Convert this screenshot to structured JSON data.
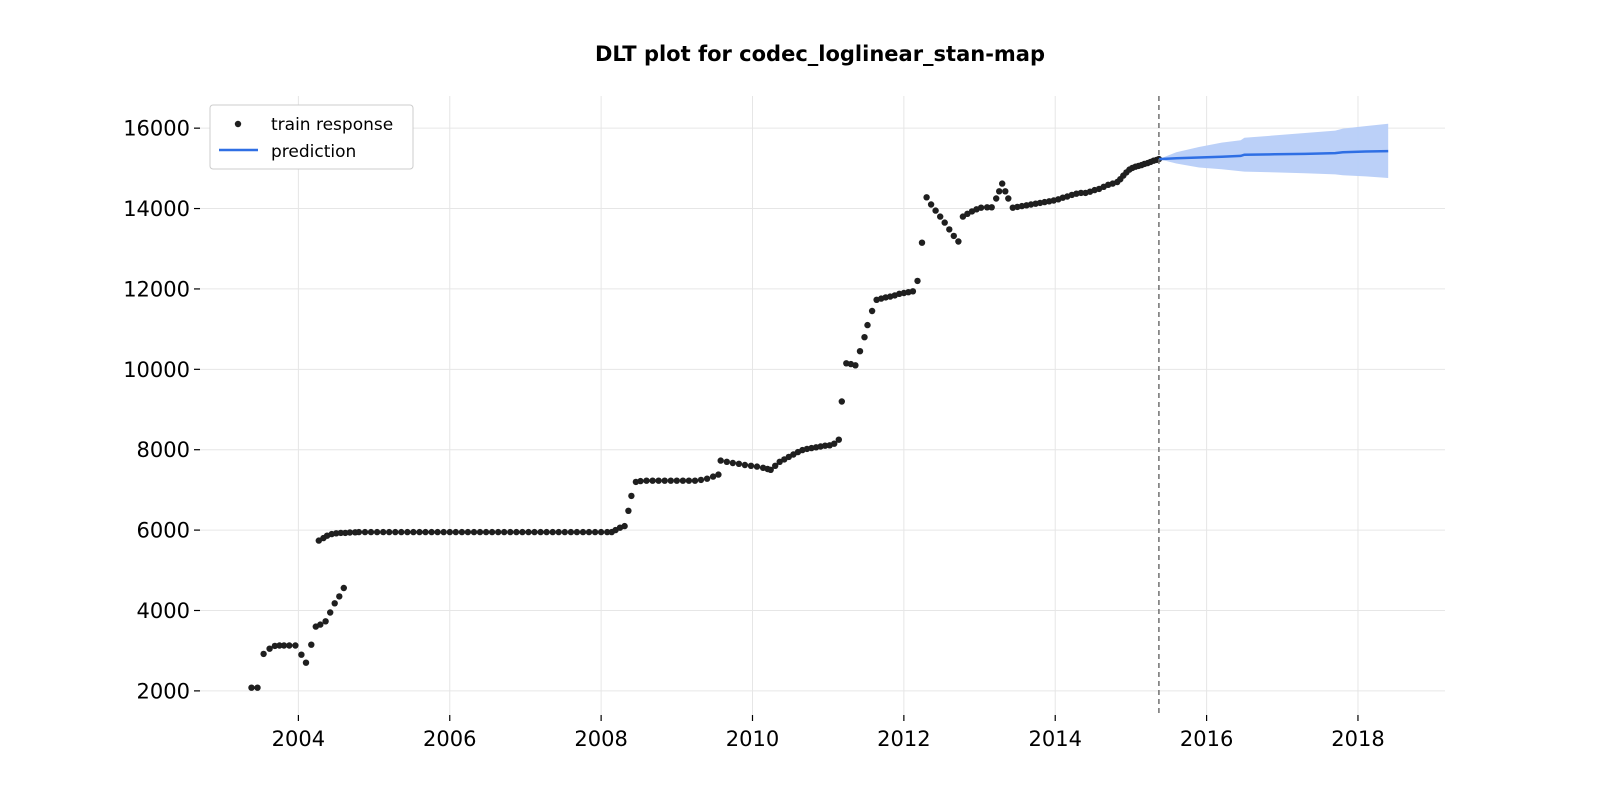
{
  "chart_data": {
    "type": "scatter",
    "title": "DLT plot for codec_loglinear_stan-map",
    "xlabel": "",
    "ylabel": "",
    "xlim": [
      2002.7,
      2019.15
    ],
    "ylim": [
      1400,
      16800
    ],
    "grid": true,
    "legend_position": "top-left",
    "x_ticks": [
      2004,
      2006,
      2008,
      2010,
      2012,
      2014,
      2016,
      2018
    ],
    "x_tick_labels": [
      "2004",
      "2006",
      "2008",
      "2010",
      "2012",
      "2014",
      "2016",
      "2018"
    ],
    "y_ticks": [
      2000,
      4000,
      6000,
      8000,
      10000,
      12000,
      14000,
      16000
    ],
    "y_tick_labels": [
      "2000",
      "4000",
      "6000",
      "8000",
      "10000",
      "12000",
      "14000",
      "16000"
    ],
    "forecast_start": 2015.37,
    "series": [
      {
        "name": "train response",
        "kind": "scatter",
        "color": "#1f1f1f",
        "points": [
          [
            2003.38,
            2080
          ],
          [
            2003.46,
            2080
          ],
          [
            2003.54,
            2920
          ],
          [
            2003.62,
            3050
          ],
          [
            2003.69,
            3120
          ],
          [
            2003.75,
            3130
          ],
          [
            2003.81,
            3130
          ],
          [
            2003.88,
            3130
          ],
          [
            2003.96,
            3130
          ],
          [
            2004.04,
            2900
          ],
          [
            2004.1,
            2700
          ],
          [
            2004.17,
            3150
          ],
          [
            2004.23,
            3600
          ],
          [
            2004.29,
            3650
          ],
          [
            2004.36,
            3730
          ],
          [
            2004.42,
            3950
          ],
          [
            2004.48,
            4180
          ],
          [
            2004.54,
            4350
          ],
          [
            2004.6,
            4560
          ],
          [
            2004.27,
            5740
          ],
          [
            2004.33,
            5800
          ],
          [
            2004.38,
            5860
          ],
          [
            2004.44,
            5900
          ],
          [
            2004.5,
            5920
          ],
          [
            2004.56,
            5930
          ],
          [
            2004.62,
            5930
          ],
          [
            2004.68,
            5940
          ],
          [
            2004.75,
            5945
          ],
          [
            2004.8,
            5950
          ],
          [
            2004.88,
            5950
          ],
          [
            2004.96,
            5950
          ],
          [
            2005.04,
            5950
          ],
          [
            2005.12,
            5950
          ],
          [
            2005.2,
            5950
          ],
          [
            2005.28,
            5950
          ],
          [
            2005.36,
            5950
          ],
          [
            2005.44,
            5950
          ],
          [
            2005.52,
            5950
          ],
          [
            2005.6,
            5950
          ],
          [
            2005.68,
            5950
          ],
          [
            2005.76,
            5950
          ],
          [
            2005.84,
            5950
          ],
          [
            2005.92,
            5950
          ],
          [
            2006.0,
            5950
          ],
          [
            2006.08,
            5950
          ],
          [
            2006.16,
            5950
          ],
          [
            2006.24,
            5950
          ],
          [
            2006.32,
            5950
          ],
          [
            2006.4,
            5950
          ],
          [
            2006.48,
            5950
          ],
          [
            2006.56,
            5950
          ],
          [
            2006.64,
            5950
          ],
          [
            2006.72,
            5950
          ],
          [
            2006.8,
            5950
          ],
          [
            2006.88,
            5950
          ],
          [
            2006.96,
            5950
          ],
          [
            2007.04,
            5950
          ],
          [
            2007.12,
            5950
          ],
          [
            2007.2,
            5950
          ],
          [
            2007.28,
            5950
          ],
          [
            2007.36,
            5950
          ],
          [
            2007.44,
            5950
          ],
          [
            2007.52,
            5950
          ],
          [
            2007.6,
            5950
          ],
          [
            2007.68,
            5950
          ],
          [
            2007.76,
            5950
          ],
          [
            2007.84,
            5950
          ],
          [
            2007.92,
            5950
          ],
          [
            2008.0,
            5950
          ],
          [
            2008.08,
            5950
          ],
          [
            2008.14,
            5950
          ],
          [
            2008.19,
            6000
          ],
          [
            2008.25,
            6060
          ],
          [
            2008.31,
            6100
          ],
          [
            2008.36,
            6480
          ],
          [
            2008.4,
            6850
          ],
          [
            2008.46,
            7200
          ],
          [
            2008.52,
            7220
          ],
          [
            2008.6,
            7230
          ],
          [
            2008.68,
            7230
          ],
          [
            2008.76,
            7230
          ],
          [
            2008.84,
            7230
          ],
          [
            2008.92,
            7230
          ],
          [
            2009.0,
            7230
          ],
          [
            2009.08,
            7230
          ],
          [
            2009.16,
            7230
          ],
          [
            2009.24,
            7230
          ],
          [
            2009.32,
            7250
          ],
          [
            2009.4,
            7280
          ],
          [
            2009.48,
            7330
          ],
          [
            2009.55,
            7380
          ],
          [
            2009.58,
            7730
          ],
          [
            2009.66,
            7700
          ],
          [
            2009.74,
            7670
          ],
          [
            2009.82,
            7650
          ],
          [
            2009.9,
            7620
          ],
          [
            2009.98,
            7600
          ],
          [
            2010.06,
            7580
          ],
          [
            2010.14,
            7550
          ],
          [
            2010.2,
            7520
          ],
          [
            2010.24,
            7500
          ],
          [
            2010.3,
            7600
          ],
          [
            2010.36,
            7700
          ],
          [
            2010.42,
            7760
          ],
          [
            2010.48,
            7820
          ],
          [
            2010.54,
            7880
          ],
          [
            2010.6,
            7940
          ],
          [
            2010.66,
            7990
          ],
          [
            2010.72,
            8020
          ],
          [
            2010.78,
            8040
          ],
          [
            2010.84,
            8060
          ],
          [
            2010.9,
            8080
          ],
          [
            2010.96,
            8100
          ],
          [
            2011.02,
            8110
          ],
          [
            2011.08,
            8150
          ],
          [
            2011.14,
            8250
          ],
          [
            2011.18,
            9200
          ],
          [
            2011.24,
            10150
          ],
          [
            2011.3,
            10130
          ],
          [
            2011.36,
            10100
          ],
          [
            2011.42,
            10450
          ],
          [
            2011.48,
            10800
          ],
          [
            2011.52,
            11100
          ],
          [
            2011.58,
            11450
          ],
          [
            2011.64,
            11730
          ],
          [
            2011.7,
            11760
          ],
          [
            2011.76,
            11790
          ],
          [
            2011.82,
            11810
          ],
          [
            2011.88,
            11840
          ],
          [
            2011.94,
            11880
          ],
          [
            2012.0,
            11900
          ],
          [
            2012.06,
            11920
          ],
          [
            2012.12,
            11940
          ],
          [
            2012.18,
            12200
          ],
          [
            2012.24,
            13150
          ],
          [
            2012.3,
            14280
          ],
          [
            2012.36,
            14100
          ],
          [
            2012.42,
            13950
          ],
          [
            2012.48,
            13800
          ],
          [
            2012.54,
            13650
          ],
          [
            2012.6,
            13480
          ],
          [
            2012.66,
            13320
          ],
          [
            2012.72,
            13180
          ],
          [
            2012.78,
            13800
          ],
          [
            2012.84,
            13870
          ],
          [
            2012.9,
            13930
          ],
          [
            2012.96,
            13980
          ],
          [
            2013.02,
            14020
          ],
          [
            2013.1,
            14030
          ],
          [
            2013.16,
            14030
          ],
          [
            2013.22,
            14250
          ],
          [
            2013.26,
            14430
          ],
          [
            2013.3,
            14620
          ],
          [
            2013.34,
            14430
          ],
          [
            2013.38,
            14250
          ],
          [
            2013.44,
            14020
          ],
          [
            2013.5,
            14040
          ],
          [
            2013.56,
            14060
          ],
          [
            2013.62,
            14080
          ],
          [
            2013.68,
            14100
          ],
          [
            2013.74,
            14120
          ],
          [
            2013.8,
            14140
          ],
          [
            2013.86,
            14160
          ],
          [
            2013.92,
            14180
          ],
          [
            2013.98,
            14200
          ],
          [
            2014.04,
            14230
          ],
          [
            2014.1,
            14270
          ],
          [
            2014.16,
            14300
          ],
          [
            2014.22,
            14340
          ],
          [
            2014.28,
            14370
          ],
          [
            2014.34,
            14390
          ],
          [
            2014.4,
            14390
          ],
          [
            2014.46,
            14420
          ],
          [
            2014.52,
            14460
          ],
          [
            2014.58,
            14490
          ],
          [
            2014.64,
            14540
          ],
          [
            2014.7,
            14590
          ],
          [
            2014.76,
            14620
          ],
          [
            2014.82,
            14660
          ],
          [
            2014.86,
            14730
          ],
          [
            2014.9,
            14820
          ],
          [
            2014.94,
            14900
          ],
          [
            2014.98,
            14970
          ],
          [
            2015.02,
            15010
          ],
          [
            2015.06,
            15040
          ],
          [
            2015.1,
            15060
          ],
          [
            2015.14,
            15080
          ],
          [
            2015.18,
            15110
          ],
          [
            2015.22,
            15130
          ],
          [
            2015.26,
            15160
          ],
          [
            2015.3,
            15190
          ],
          [
            2015.34,
            15210
          ],
          [
            2015.37,
            15230
          ]
        ]
      },
      {
        "name": "prediction",
        "kind": "line",
        "color": "#2f6fe4",
        "band_color": "#b7cef8",
        "x": [
          2015.37,
          2015.6,
          2015.9,
          2016.2,
          2016.45,
          2016.5,
          2016.9,
          2017.3,
          2017.7,
          2017.8,
          2018.1,
          2018.4
        ],
        "y": [
          15230,
          15250,
          15270,
          15290,
          15310,
          15340,
          15350,
          15360,
          15380,
          15400,
          15420,
          15430
        ],
        "lower": [
          15230,
          15120,
          15020,
          14980,
          14930,
          14920,
          14900,
          14880,
          14850,
          14830,
          14800,
          14760
        ],
        "upper": [
          15230,
          15400,
          15530,
          15640,
          15700,
          15760,
          15820,
          15880,
          15940,
          15990,
          16050,
          16110
        ]
      }
    ]
  }
}
